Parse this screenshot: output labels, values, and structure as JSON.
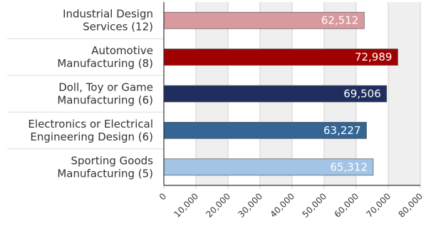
{
  "chart_data": {
    "type": "bar",
    "orientation": "horizontal",
    "categories": [
      [
        "Industrial Design",
        "Services (12)"
      ],
      [
        "Automotive",
        "Manufacturing (8)"
      ],
      [
        "Doll, Toy or Game",
        "Manufacturing (6)"
      ],
      [
        "Electronics or Electrical",
        "Engineering Design (6)"
      ],
      [
        "Sporting Goods",
        "Manufacturing (5)"
      ]
    ],
    "values": [
      62512,
      72989,
      69506,
      63227,
      65312
    ],
    "data_labels": [
      "62,512",
      "72,989",
      "69,506",
      "63,227",
      "65,312"
    ],
    "colors": [
      "#d8999f",
      "#a10000",
      "#1f2e5e",
      "#346595",
      "#a3c4e4"
    ],
    "xlim": [
      0,
      80000
    ],
    "x_ticks": [
      0,
      10000,
      20000,
      30000,
      40000,
      50000,
      60000,
      70000,
      80000
    ],
    "x_tick_labels": [
      "0",
      "10,000",
      "20,000",
      "30,000",
      "40,000",
      "50,000",
      "60,000",
      "70,000",
      "80,000"
    ],
    "grid": true,
    "title": "",
    "xlabel": "",
    "ylabel": ""
  }
}
